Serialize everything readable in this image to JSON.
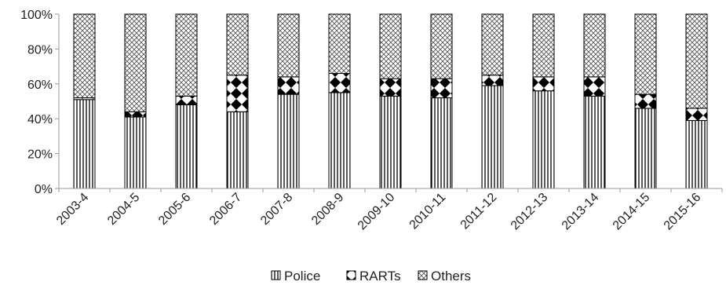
{
  "chart_data": {
    "type": "bar",
    "stacked": true,
    "percent": true,
    "categories": [
      "2003-4",
      "2004-5",
      "2005-6",
      "2006-7",
      "2007-8",
      "2008-9",
      "2009-10",
      "2010-11",
      "2011-12",
      "2012-13",
      "2013-14",
      "2014-15",
      "2015-16"
    ],
    "series": [
      {
        "name": "Police",
        "pattern": "vertical-stripes",
        "values": [
          51,
          41,
          48,
          44,
          54,
          55,
          53,
          52,
          59,
          56,
          53,
          46,
          39
        ]
      },
      {
        "name": "RARTs",
        "pattern": "diamond-checker",
        "values": [
          1,
          3,
          5,
          21,
          10,
          11,
          10,
          11,
          6,
          8,
          11,
          8,
          7
        ]
      },
      {
        "name": "Others",
        "pattern": "crosshatch",
        "values": [
          48,
          56,
          47,
          35,
          36,
          34,
          37,
          37,
          35,
          36,
          36,
          46,
          54
        ]
      }
    ],
    "yticks": [
      "0%",
      "20%",
      "40%",
      "60%",
      "80%",
      "100%"
    ],
    "ylim": [
      0,
      100
    ],
    "xlabel": "",
    "ylabel": "",
    "title": "",
    "legend_position": "bottom",
    "grid": false,
    "colors": {
      "stroke": "#000000",
      "axis": "#999999",
      "fill": "#ffffff"
    }
  }
}
